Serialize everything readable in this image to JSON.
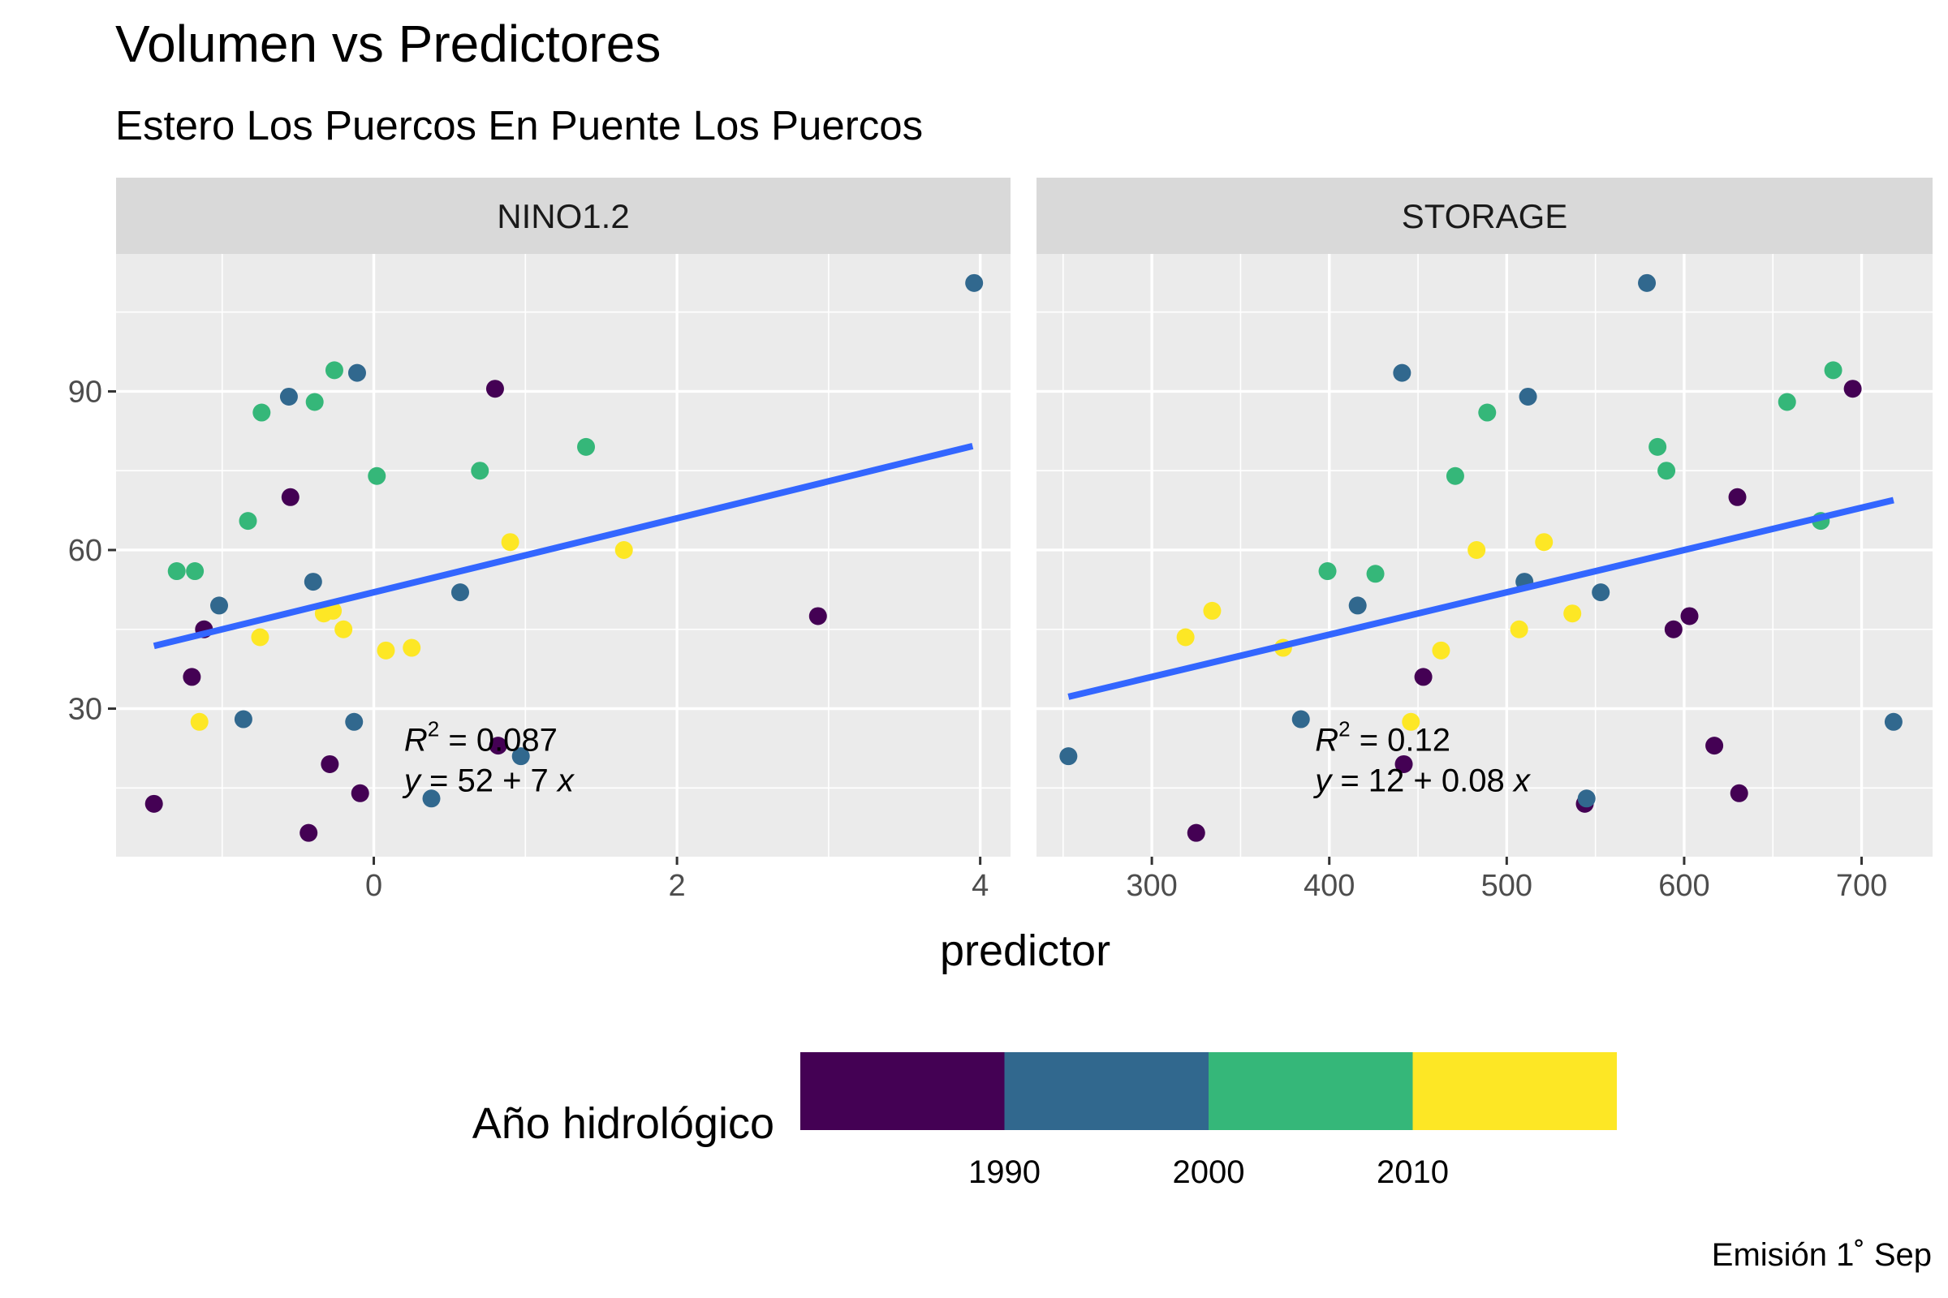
{
  "title": "Volumen vs Predictores",
  "subtitle": "Estero Los Puercos En Puente Los Puercos",
  "caption": "Emisión 1˚ Sep",
  "colors": {
    "panel_bg": "#EBEBEB",
    "strip_bg": "#D9D9D9",
    "grid": "#FFFFFF",
    "fit_line": "#3366FF",
    "legend_scale": [
      "#440154",
      "#31688E",
      "#35B779",
      "#FDE725"
    ]
  },
  "chart_data": {
    "type": "scatter",
    "xlabel": "predictor",
    "ylabel": "",
    "ylim": [
      2,
      116
    ],
    "y_ticks": [
      30,
      60,
      90
    ],
    "y_tick_labels": [
      "30",
      "60",
      "90"
    ],
    "legend": {
      "title": "Año hidrológico",
      "position": "bottom",
      "breaks": [
        "1990",
        "2000",
        "2010"
      ],
      "bin_edges": [
        1980,
        1990,
        2000,
        2010,
        2020
      ],
      "colors": [
        "#440154",
        "#31688E",
        "#35B779",
        "#FDE725"
      ]
    },
    "panels": [
      {
        "name": "NINO1.2",
        "xlim": [
          -1.7,
          4.2
        ],
        "x_ticks": [
          0,
          2,
          4
        ],
        "x_tick_labels": [
          "0",
          "2",
          "4"
        ],
        "fit": {
          "intercept": 52,
          "slope": 7,
          "x": [
            -1.45,
            3.95
          ]
        },
        "r2_label": "= 0.087",
        "eq_label": "= 52 + 7",
        "label_pos": [
          0.2,
          22
        ],
        "points": [
          {
            "x": -1.45,
            "y": 12,
            "color": "#440154"
          },
          {
            "x": -1.3,
            "y": 56,
            "color": "#35B779"
          },
          {
            "x": -1.2,
            "y": 36,
            "color": "#440154"
          },
          {
            "x": -1.18,
            "y": 56,
            "color": "#35B779"
          },
          {
            "x": -1.15,
            "y": 27.5,
            "color": "#FDE725"
          },
          {
            "x": -1.12,
            "y": 45,
            "color": "#440154"
          },
          {
            "x": -1.02,
            "y": 49.5,
            "color": "#31688E"
          },
          {
            "x": -0.86,
            "y": 28,
            "color": "#31688E"
          },
          {
            "x": -0.83,
            "y": 65.5,
            "color": "#35B779"
          },
          {
            "x": -0.75,
            "y": 43.5,
            "color": "#FDE725"
          },
          {
            "x": -0.74,
            "y": 86,
            "color": "#35B779"
          },
          {
            "x": -0.56,
            "y": 89,
            "color": "#31688E"
          },
          {
            "x": -0.55,
            "y": 70,
            "color": "#440154"
          },
          {
            "x": -0.43,
            "y": 6.5,
            "color": "#440154"
          },
          {
            "x": -0.4,
            "y": 54,
            "color": "#31688E"
          },
          {
            "x": -0.39,
            "y": 88,
            "color": "#35B779"
          },
          {
            "x": -0.33,
            "y": 48,
            "color": "#FDE725"
          },
          {
            "x": -0.29,
            "y": 19.5,
            "color": "#440154"
          },
          {
            "x": -0.27,
            "y": 48.5,
            "color": "#FDE725"
          },
          {
            "x": -0.26,
            "y": 94,
            "color": "#35B779"
          },
          {
            "x": -0.2,
            "y": 45,
            "color": "#FDE725"
          },
          {
            "x": -0.13,
            "y": 27.5,
            "color": "#31688E"
          },
          {
            "x": -0.11,
            "y": 93.5,
            "color": "#31688E"
          },
          {
            "x": -0.09,
            "y": 14,
            "color": "#440154"
          },
          {
            "x": 0.02,
            "y": 74,
            "color": "#35B779"
          },
          {
            "x": 0.08,
            "y": 41,
            "color": "#FDE725"
          },
          {
            "x": 0.25,
            "y": 41.5,
            "color": "#FDE725"
          },
          {
            "x": 0.38,
            "y": 13,
            "color": "#31688E"
          },
          {
            "x": 0.57,
            "y": 52,
            "color": "#31688E"
          },
          {
            "x": 0.7,
            "y": 75,
            "color": "#35B779"
          },
          {
            "x": 0.8,
            "y": 90.5,
            "color": "#440154"
          },
          {
            "x": 0.82,
            "y": 23,
            "color": "#440154"
          },
          {
            "x": 0.9,
            "y": 61.5,
            "color": "#FDE725"
          },
          {
            "x": 0.97,
            "y": 21,
            "color": "#31688E"
          },
          {
            "x": 1.4,
            "y": 79.5,
            "color": "#35B779"
          },
          {
            "x": 1.65,
            "y": 60,
            "color": "#FDE725"
          },
          {
            "x": 2.93,
            "y": 47.5,
            "color": "#440154"
          },
          {
            "x": 3.96,
            "y": 110.5,
            "color": "#31688E"
          }
        ]
      },
      {
        "name": "STORAGE",
        "xlim": [
          235,
          740
        ],
        "x_ticks": [
          300,
          400,
          500,
          600,
          700
        ],
        "x_tick_labels": [
          "300",
          "400",
          "500",
          "600",
          "700"
        ],
        "fit": {
          "intercept": 12,
          "slope": 0.08,
          "x": [
            253,
            718
          ]
        },
        "r2_label": "= 0.12",
        "eq_label": "= 12 + 0.08",
        "label_pos": [
          392,
          22
        ],
        "points": [
          {
            "x": 253,
            "y": 21,
            "color": "#31688E"
          },
          {
            "x": 319,
            "y": 43.5,
            "color": "#FDE725"
          },
          {
            "x": 325,
            "y": 6.5,
            "color": "#440154"
          },
          {
            "x": 334,
            "y": 48.5,
            "color": "#FDE725"
          },
          {
            "x": 374,
            "y": 41.5,
            "color": "#FDE725"
          },
          {
            "x": 384,
            "y": 28,
            "color": "#31688E"
          },
          {
            "x": 399,
            "y": 56,
            "color": "#35B779"
          },
          {
            "x": 416,
            "y": 49.5,
            "color": "#31688E"
          },
          {
            "x": 426,
            "y": 55.5,
            "color": "#35B779"
          },
          {
            "x": 441,
            "y": 93.5,
            "color": "#31688E"
          },
          {
            "x": 442,
            "y": 19.5,
            "color": "#440154"
          },
          {
            "x": 446,
            "y": 27.5,
            "color": "#FDE725"
          },
          {
            "x": 453,
            "y": 36,
            "color": "#440154"
          },
          {
            "x": 463,
            "y": 41,
            "color": "#FDE725"
          },
          {
            "x": 471,
            "y": 74,
            "color": "#35B779"
          },
          {
            "x": 483,
            "y": 60,
            "color": "#FDE725"
          },
          {
            "x": 489,
            "y": 86,
            "color": "#35B779"
          },
          {
            "x": 507,
            "y": 45,
            "color": "#FDE725"
          },
          {
            "x": 510,
            "y": 54,
            "color": "#31688E"
          },
          {
            "x": 512,
            "y": 89,
            "color": "#31688E"
          },
          {
            "x": 521,
            "y": 61.5,
            "color": "#FDE725"
          },
          {
            "x": 537,
            "y": 48,
            "color": "#FDE725"
          },
          {
            "x": 544,
            "y": 12,
            "color": "#440154"
          },
          {
            "x": 545,
            "y": 13,
            "color": "#31688E"
          },
          {
            "x": 553,
            "y": 52,
            "color": "#31688E"
          },
          {
            "x": 579,
            "y": 110.5,
            "color": "#31688E"
          },
          {
            "x": 585,
            "y": 79.5,
            "color": "#35B779"
          },
          {
            "x": 590,
            "y": 75,
            "color": "#35B779"
          },
          {
            "x": 594,
            "y": 45,
            "color": "#440154"
          },
          {
            "x": 603,
            "y": 47.5,
            "color": "#440154"
          },
          {
            "x": 617,
            "y": 23,
            "color": "#440154"
          },
          {
            "x": 630,
            "y": 70,
            "color": "#440154"
          },
          {
            "x": 631,
            "y": 14,
            "color": "#440154"
          },
          {
            "x": 658,
            "y": 88,
            "color": "#35B779"
          },
          {
            "x": 677,
            "y": 65.5,
            "color": "#35B779"
          },
          {
            "x": 684,
            "y": 94,
            "color": "#35B779"
          },
          {
            "x": 695,
            "y": 90.5,
            "color": "#440154"
          },
          {
            "x": 718,
            "y": 27.5,
            "color": "#31688E"
          }
        ]
      }
    ]
  }
}
